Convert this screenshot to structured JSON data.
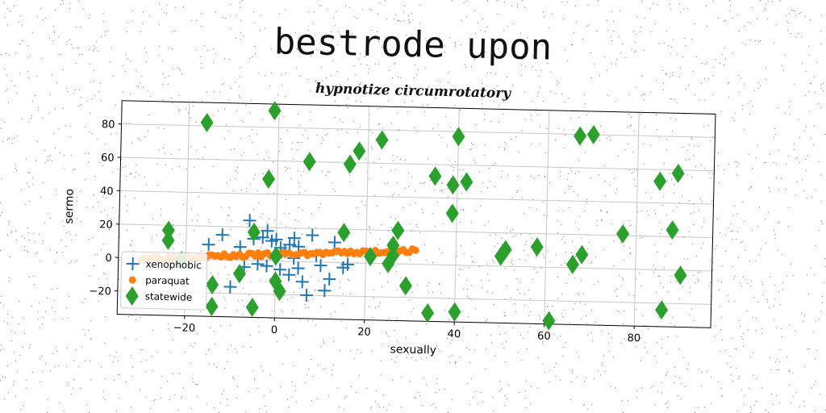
{
  "title": "bestrode upon",
  "subtitle": "hypnotize circumrotatory",
  "chart_data": {
    "type": "scatter",
    "xlabel": "sexually",
    "ylabel": "sermo",
    "xlim": [
      -35,
      97
    ],
    "ylim": [
      -34,
      94
    ],
    "xticks": [
      -20,
      0,
      20,
      40,
      60,
      80
    ],
    "yticks": [
      -20,
      0,
      20,
      40,
      60,
      80
    ],
    "xtick_labels": [
      "−20",
      "0",
      "20",
      "40",
      "60",
      "80"
    ],
    "ytick_labels": [
      "−20",
      "0",
      "20",
      "40",
      "60",
      "80"
    ],
    "grid": true,
    "legend_position": "lower-left",
    "series": [
      {
        "name": "xenophobic",
        "marker": "plus",
        "color": "#1f77b4",
        "points": [
          [
            -15,
            9
          ],
          [
            -12,
            15
          ],
          [
            -8,
            8
          ],
          [
            -6,
            24
          ],
          [
            -5,
            13
          ],
          [
            -3,
            14
          ],
          [
            -2,
            -3
          ],
          [
            -1,
            12
          ],
          [
            0,
            13
          ],
          [
            1,
            -5
          ],
          [
            2,
            6
          ],
          [
            3,
            10
          ],
          [
            4,
            14
          ],
          [
            4,
            2
          ],
          [
            5,
            -4
          ],
          [
            6,
            -12
          ],
          [
            7,
            -20
          ],
          [
            8,
            16
          ],
          [
            10,
            -2
          ],
          [
            11,
            -17
          ],
          [
            12,
            -10
          ],
          [
            13,
            12
          ],
          [
            15,
            -3
          ],
          [
            16,
            -1
          ],
          [
            -4,
            -2
          ],
          [
            -10,
            -16
          ],
          [
            -7,
            -4
          ],
          [
            1,
            8
          ],
          [
            3,
            -8
          ],
          [
            9,
            4
          ],
          [
            -2,
            18
          ],
          [
            5,
            9
          ]
        ]
      },
      {
        "name": "paraquat",
        "marker": "circle",
        "color": "#ff7f0e",
        "line": {
          "from": [
            -30,
            0
          ],
          "to": [
            31,
            8
          ],
          "count": 90
        }
      },
      {
        "name": "statewide",
        "marker": "diamond",
        "color": "#2ca02c",
        "points": [
          [
            -16,
            82
          ],
          [
            -1,
            90
          ],
          [
            -2,
            49
          ],
          [
            7,
            60
          ],
          [
            16,
            59
          ],
          [
            18,
            67
          ],
          [
            23,
            74
          ],
          [
            40,
            77
          ],
          [
            35,
            53
          ],
          [
            39,
            48
          ],
          [
            42,
            50
          ],
          [
            39,
            31
          ],
          [
            27,
            20
          ],
          [
            26,
            11
          ],
          [
            26,
            5
          ],
          [
            25,
            0
          ],
          [
            29,
            -13
          ],
          [
            34,
            -29
          ],
          [
            40,
            -28
          ],
          [
            50,
            6
          ],
          [
            51,
            10
          ],
          [
            58,
            12
          ],
          [
            61,
            -32
          ],
          [
            66,
            2
          ],
          [
            68,
            8
          ],
          [
            67,
            79
          ],
          [
            70,
            80
          ],
          [
            77,
            21
          ],
          [
            85,
            53
          ],
          [
            89,
            58
          ],
          [
            88,
            24
          ],
          [
            90,
            -3
          ],
          [
            86,
            -24
          ],
          [
            -24,
            17
          ],
          [
            -24,
            11
          ],
          [
            -21,
            -1
          ],
          [
            -14,
            -15
          ],
          [
            -14,
            -28
          ],
          [
            -8,
            -8
          ],
          [
            -5,
            17
          ],
          [
            -5,
            -28
          ],
          [
            0,
            3
          ],
          [
            0,
            -12
          ],
          [
            1,
            -18
          ],
          [
            15,
            18
          ],
          [
            21,
            4
          ]
        ]
      }
    ]
  }
}
